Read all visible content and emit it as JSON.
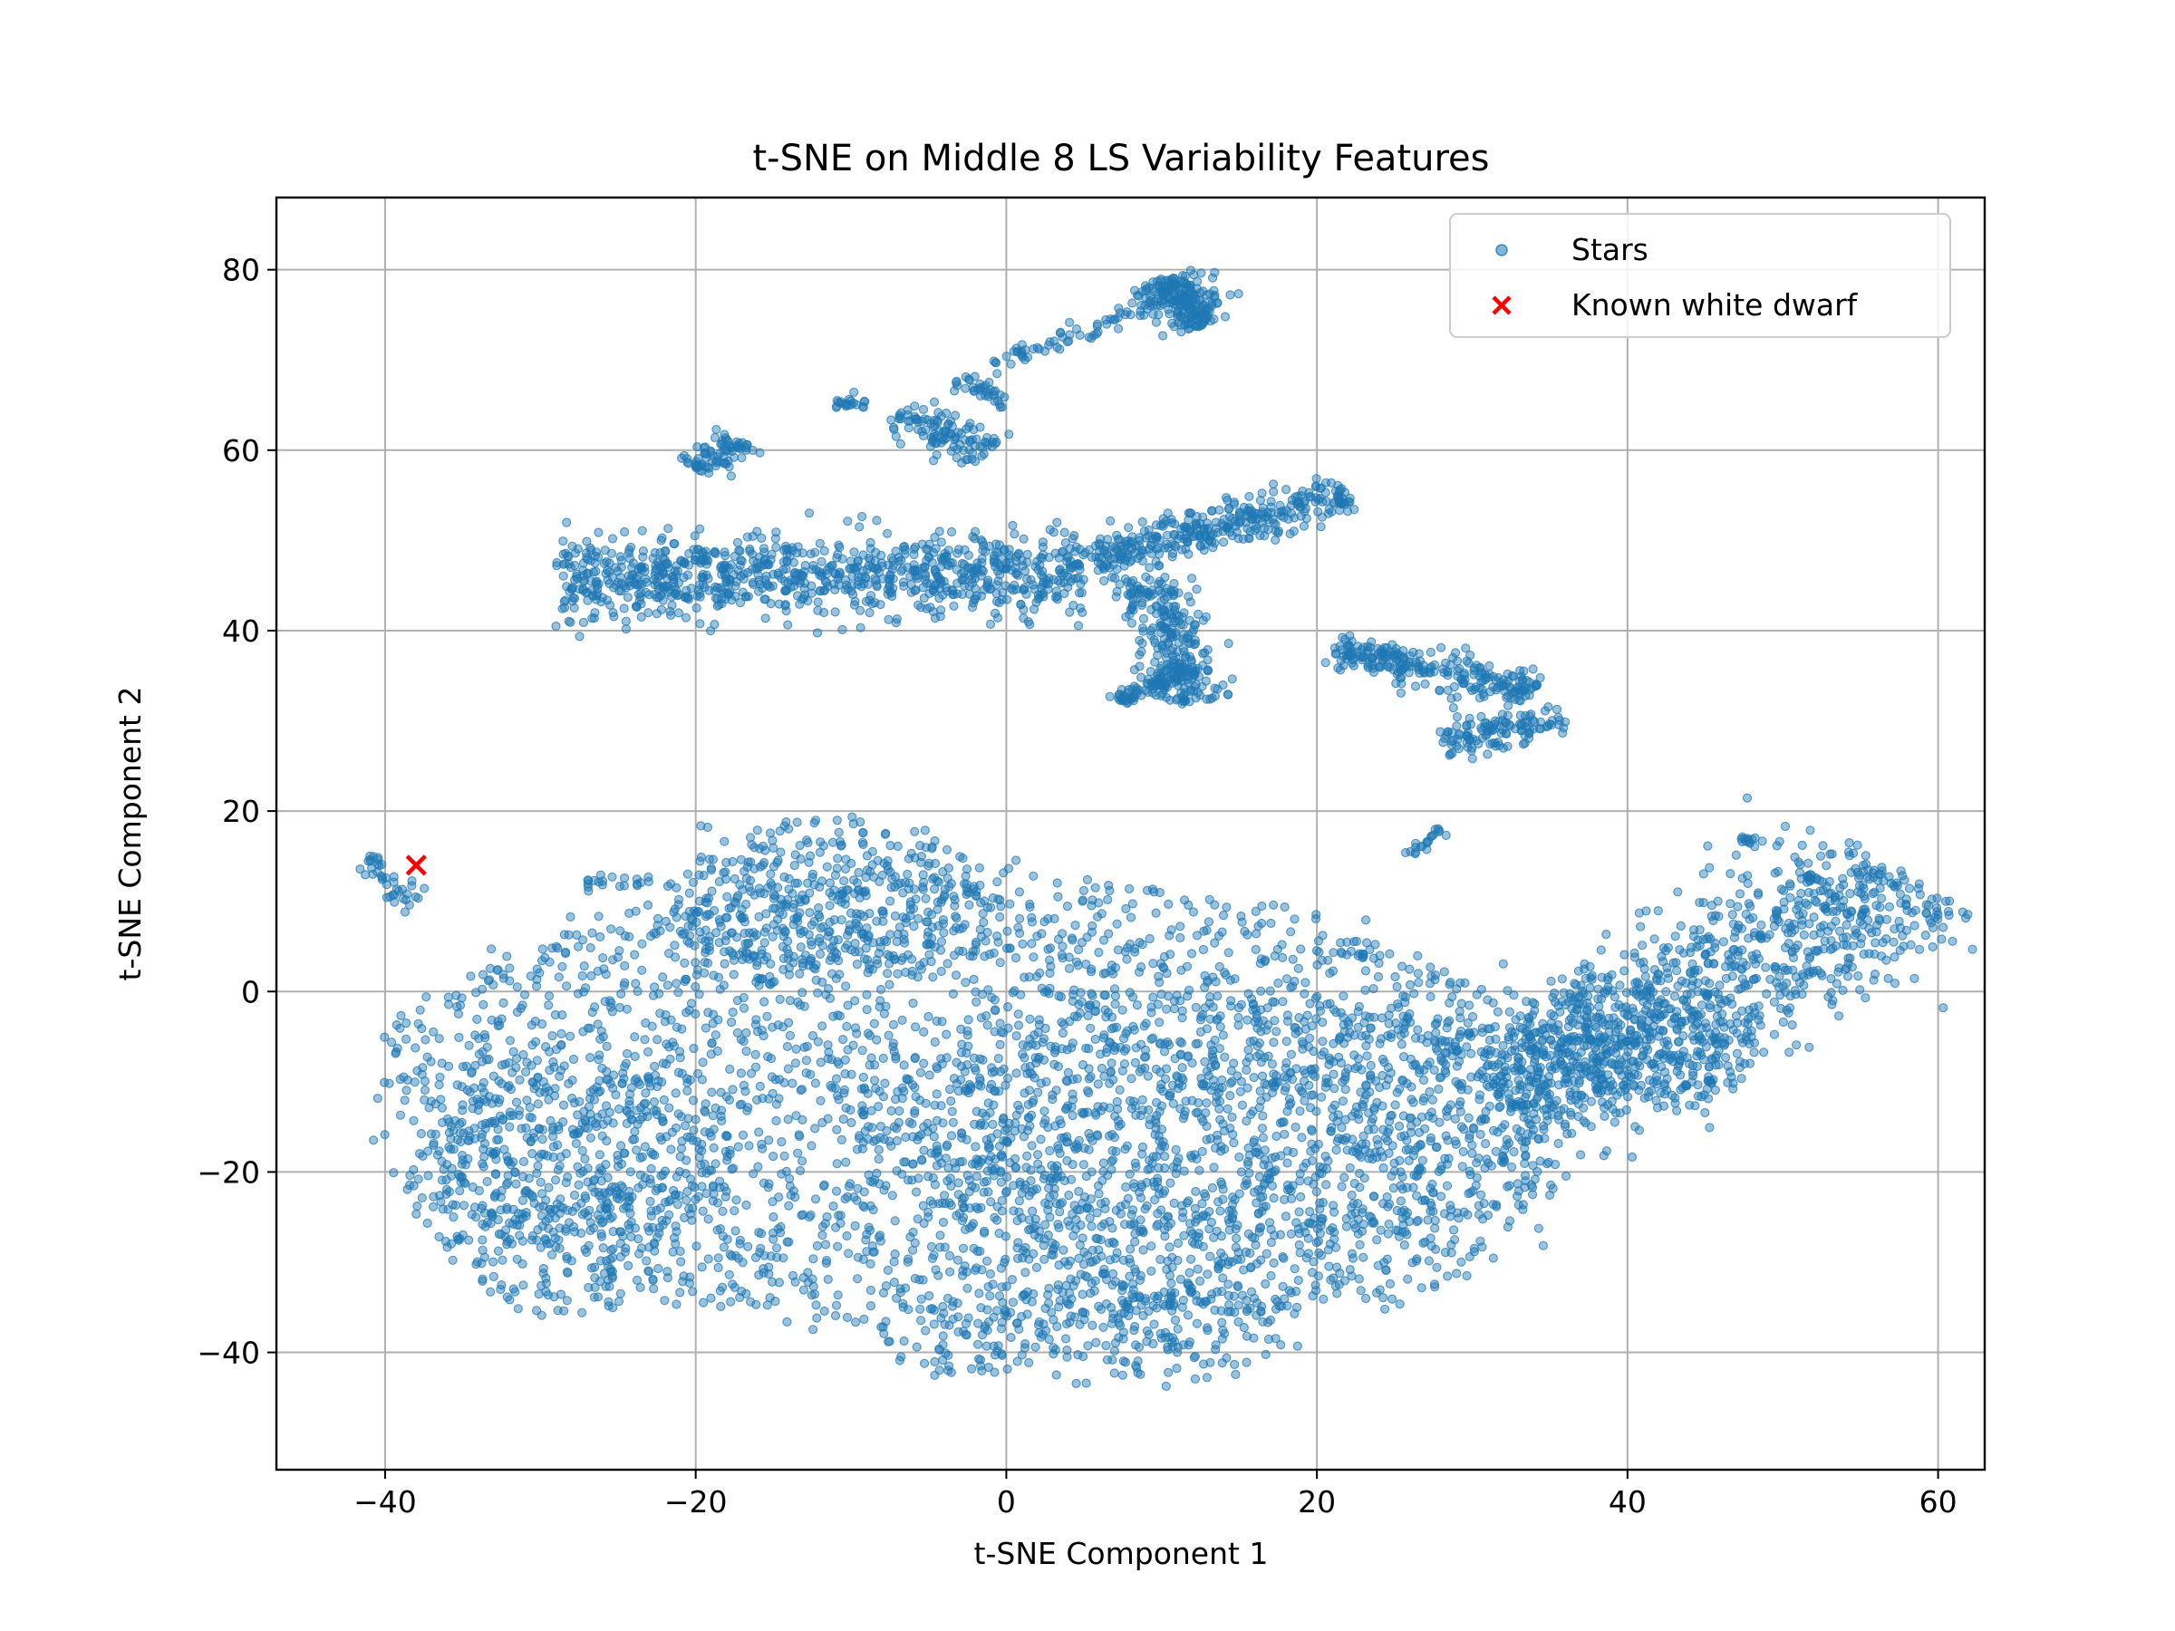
{
  "chart_data": {
    "type": "scatter",
    "title": "t-SNE on Middle 8 LS Variability Features",
    "xlabel": "t-SNE Component 1",
    "ylabel": "t-SNE Component 2",
    "xlim": [
      -47,
      63
    ],
    "ylim": [
      -53,
      88
    ],
    "xticks": [
      -40,
      -20,
      0,
      20,
      40,
      60
    ],
    "yticks": [
      -40,
      -20,
      0,
      20,
      40,
      60,
      80
    ],
    "xtick_labels": [
      "−40",
      "−20",
      "0",
      "20",
      "40",
      "60"
    ],
    "ytick_labels": [
      "−40",
      "−20",
      "0",
      "20",
      "40",
      "60",
      "80"
    ],
    "grid": true,
    "legend_position": "top-right",
    "series": [
      {
        "name": "Stars",
        "marker": "circle",
        "color": "#1f77b4",
        "regions": [
          {
            "shape": "blob",
            "cx": -3,
            "cy": -12,
            "rx": 38,
            "ry": 25,
            "n": 2600
          },
          {
            "shape": "blob",
            "cx": 15,
            "cy": -18,
            "rx": 22,
            "ry": 18,
            "n": 900
          },
          {
            "shape": "blob",
            "cx": -28,
            "cy": -22,
            "rx": 10,
            "ry": 14,
            "n": 450
          },
          {
            "shape": "blob",
            "cx": -12,
            "cy": 10,
            "rx": 10,
            "ry": 9,
            "n": 400
          },
          {
            "shape": "blob",
            "cx": 5,
            "cy": -38,
            "rx": 14,
            "ry": 5,
            "n": 250
          },
          {
            "shape": "blob",
            "cx": 40,
            "cy": -6,
            "rx": 8,
            "ry": 7,
            "n": 350
          },
          {
            "shape": "band",
            "x1": 32,
            "y1": -12,
            "x2": 58,
            "y2": 13,
            "w": 4,
            "n": 900
          },
          {
            "shape": "band",
            "x1": -41,
            "y1": 15,
            "x2": -38,
            "y2": 9,
            "w": 0.6,
            "n": 40
          },
          {
            "shape": "band",
            "x1": -29,
            "y1": 46,
            "x2": 5,
            "y2": 46,
            "w": 2.2,
            "n": 900
          },
          {
            "shape": "band",
            "x1": 5,
            "y1": 48,
            "x2": 22,
            "y2": 55,
            "w": 1.2,
            "n": 350
          },
          {
            "shape": "band",
            "x1": 9,
            "y1": 46,
            "x2": 12,
            "y2": 32,
            "w": 1.2,
            "n": 250
          },
          {
            "shape": "band",
            "x1": 7,
            "y1": 32,
            "x2": 12,
            "y2": 36,
            "w": 0.5,
            "n": 90
          },
          {
            "shape": "band",
            "x1": 21,
            "y1": 38,
            "x2": 34,
            "y2": 33,
            "w": 1.0,
            "n": 250
          },
          {
            "shape": "band",
            "x1": 28,
            "y1": 28,
            "x2": 36,
            "y2": 30,
            "w": 1.0,
            "n": 120
          },
          {
            "shape": "band",
            "x1": 10,
            "y1": 79,
            "x2": 13,
            "y2": 74,
            "w": 1.2,
            "n": 220
          },
          {
            "shape": "band",
            "x1": -1,
            "y1": 69,
            "x2": 9,
            "y2": 76,
            "w": 0.5,
            "n": 60
          },
          {
            "shape": "band",
            "x1": -7,
            "y1": 64,
            "x2": -1,
            "y2": 60,
            "w": 1.0,
            "n": 110
          },
          {
            "shape": "band",
            "x1": -20,
            "y1": 58,
            "x2": -17,
            "y2": 61,
            "w": 0.8,
            "n": 80
          },
          {
            "shape": "band",
            "x1": -11,
            "y1": 65,
            "x2": -9,
            "y2": 65,
            "w": 0.4,
            "n": 20
          },
          {
            "shape": "band",
            "x1": -3,
            "y1": 68,
            "x2": 0,
            "y2": 65,
            "w": 0.5,
            "n": 35
          },
          {
            "shape": "band",
            "x1": 26,
            "y1": 15,
            "x2": 28,
            "y2": 18,
            "w": 0.3,
            "n": 20
          },
          {
            "shape": "band",
            "x1": 47,
            "y1": 17,
            "x2": 50,
            "y2": 16,
            "w": 0.3,
            "n": 15
          },
          {
            "shape": "band",
            "x1": 51,
            "y1": 13,
            "x2": 53,
            "y2": 12,
            "w": 0.3,
            "n": 12
          },
          {
            "shape": "band",
            "x1": -27,
            "y1": 12,
            "x2": -23,
            "y2": 12,
            "w": 0.4,
            "n": 20
          }
        ]
      },
      {
        "name": "Known white dwarf",
        "marker": "x",
        "color": "#ff0000",
        "points": [
          {
            "x": -38,
            "y": 14
          }
        ]
      }
    ]
  }
}
